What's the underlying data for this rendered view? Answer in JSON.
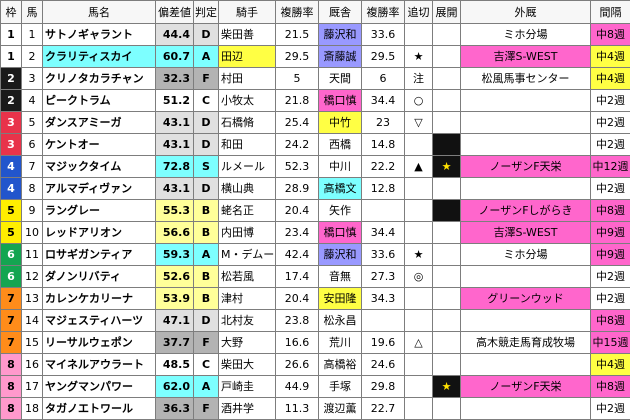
{
  "table": {
    "headers": [
      "枠",
      "馬",
      "馬名",
      "偏差値",
      "判定",
      "騎手",
      "複勝率",
      "厩舎",
      "複勝率",
      "追切",
      "展開",
      "外厩",
      "間隔"
    ],
    "rows": [
      {
        "waku": "1",
        "num": "1",
        "name": "サトノギャラント",
        "name_hl": "",
        "dev": "44.4",
        "grade": "D",
        "jockey": "柴田善",
        "jockey_hl": "",
        "jrate": "21.5",
        "stable": "藤沢和",
        "stable_hl": "blue",
        "srate": "33.6",
        "oikiri": "",
        "tenkai": "",
        "tenkai_black": false,
        "gaikyu": "ミホ分場",
        "gaikyu_hl": "",
        "interval": "中8週",
        "interval_hl": "pink"
      },
      {
        "waku": "1",
        "num": "2",
        "name": "クラリティスカイ",
        "name_hl": "cyan",
        "dev": "60.7",
        "grade": "A",
        "jockey": "田辺",
        "jockey_hl": "yellow",
        "jrate": "29.5",
        "stable": "斎藤誠",
        "stable_hl": "blue",
        "srate": "29.5",
        "oikiri": "★",
        "tenkai": "",
        "tenkai_black": false,
        "gaikyu": "吉澤S-WEST",
        "gaikyu_hl": "pink",
        "interval": "中4週",
        "interval_hl": "yellow"
      },
      {
        "waku": "2",
        "num": "3",
        "name": "クリノタカラチャン",
        "name_hl": "",
        "dev": "32.3",
        "grade": "F",
        "jockey": "村田",
        "jockey_hl": "",
        "jrate": "5",
        "stable": "天間",
        "stable_hl": "",
        "srate": "6",
        "oikiri": "注",
        "tenkai": "",
        "tenkai_black": false,
        "gaikyu": "松風馬事センター",
        "gaikyu_hl": "",
        "interval": "中4週",
        "interval_hl": "yellow"
      },
      {
        "waku": "2",
        "num": "4",
        "name": "ピークトラム",
        "name_hl": "",
        "dev": "51.2",
        "grade": "C",
        "jockey": "小牧太",
        "jockey_hl": "",
        "jrate": "21.8",
        "stable": "橋口慎",
        "stable_hl": "pink",
        "srate": "34.4",
        "oikiri": "○",
        "tenkai": "",
        "tenkai_black": false,
        "gaikyu": "",
        "gaikyu_hl": "",
        "interval": "中2週",
        "interval_hl": ""
      },
      {
        "waku": "3",
        "num": "5",
        "name": "ダンスアミーガ",
        "name_hl": "",
        "dev": "43.1",
        "grade": "D",
        "jockey": "石橋脩",
        "jockey_hl": "",
        "jrate": "25.4",
        "stable": "中竹",
        "stable_hl": "yellow",
        "srate": "23",
        "oikiri": "▽",
        "tenkai": "",
        "tenkai_black": false,
        "gaikyu": "",
        "gaikyu_hl": "",
        "interval": "中2週",
        "interval_hl": ""
      },
      {
        "waku": "3",
        "num": "6",
        "name": "ケントオー",
        "name_hl": "",
        "dev": "43.1",
        "grade": "D",
        "jockey": "和田",
        "jockey_hl": "",
        "jrate": "24.2",
        "stable": "西橋",
        "stable_hl": "",
        "srate": "14.8",
        "oikiri": "",
        "tenkai": "",
        "tenkai_black": true,
        "gaikyu": "",
        "gaikyu_hl": "",
        "interval": "中2週",
        "interval_hl": ""
      },
      {
        "waku": "4",
        "num": "7",
        "name": "マジックタイム",
        "name_hl": "",
        "dev": "72.8",
        "grade": "S",
        "jockey": "ルメール",
        "jockey_hl": "",
        "jrate": "52.3",
        "stable": "中川",
        "stable_hl": "",
        "srate": "22.2",
        "oikiri": "▲",
        "tenkai": "★",
        "tenkai_black": true,
        "gaikyu": "ノーザンF天栄",
        "gaikyu_hl": "pink",
        "interval": "中12週",
        "interval_hl": "pink"
      },
      {
        "waku": "4",
        "num": "8",
        "name": "アルマディヴァン",
        "name_hl": "",
        "dev": "43.1",
        "grade": "D",
        "jockey": "横山典",
        "jockey_hl": "",
        "jrate": "28.9",
        "stable": "高橋文",
        "stable_hl": "cyan",
        "srate": "12.8",
        "oikiri": "",
        "tenkai": "",
        "tenkai_black": false,
        "gaikyu": "",
        "gaikyu_hl": "",
        "interval": "中2週",
        "interval_hl": ""
      },
      {
        "waku": "5",
        "num": "9",
        "name": "ラングレー",
        "name_hl": "",
        "dev": "55.3",
        "grade": "B",
        "jockey": "蛯名正",
        "jockey_hl": "",
        "jrate": "20.4",
        "stable": "矢作",
        "stable_hl": "",
        "srate": "",
        "oikiri": "",
        "tenkai": "",
        "tenkai_black": true,
        "gaikyu": "ノーザンFしがらき",
        "gaikyu_hl": "pink",
        "interval": "中8週",
        "interval_hl": "pink"
      },
      {
        "waku": "5",
        "num": "10",
        "name": "レッドアリオン",
        "name_hl": "",
        "dev": "56.6",
        "grade": "B",
        "jockey": "内田博",
        "jockey_hl": "",
        "jrate": "23.4",
        "stable": "橋口慎",
        "stable_hl": "pink",
        "srate": "34.4",
        "oikiri": "",
        "tenkai": "",
        "tenkai_black": false,
        "gaikyu": "吉澤S-WEST",
        "gaikyu_hl": "pink",
        "interval": "中9週",
        "interval_hl": "pink"
      },
      {
        "waku": "6",
        "num": "11",
        "name": "ロサギガンティア",
        "name_hl": "",
        "dev": "59.3",
        "grade": "A",
        "jockey": "M・デムーロ",
        "jockey_hl": "",
        "jrate": "42.4",
        "stable": "藤沢和",
        "stable_hl": "blue",
        "srate": "33.6",
        "oikiri": "★",
        "tenkai": "",
        "tenkai_black": false,
        "gaikyu": "ミホ分場",
        "gaikyu_hl": "",
        "interval": "中9週",
        "interval_hl": "pink"
      },
      {
        "waku": "6",
        "num": "12",
        "name": "ダノンリバティ",
        "name_hl": "",
        "dev": "52.6",
        "grade": "B",
        "jockey": "松若風",
        "jockey_hl": "",
        "jrate": "17.4",
        "stable": "音無",
        "stable_hl": "",
        "srate": "27.3",
        "oikiri": "◎",
        "tenkai": "",
        "tenkai_black": false,
        "gaikyu": "",
        "gaikyu_hl": "",
        "interval": "中2週",
        "interval_hl": ""
      },
      {
        "waku": "7",
        "num": "13",
        "name": "カレンケカリーナ",
        "name_hl": "",
        "dev": "53.9",
        "grade": "B",
        "jockey": "津村",
        "jockey_hl": "",
        "jrate": "20.4",
        "stable": "安田隆",
        "stable_hl": "yellow",
        "srate": "34.3",
        "oikiri": "",
        "tenkai": "",
        "tenkai_black": false,
        "gaikyu": "グリーンウッド",
        "gaikyu_hl": "pink",
        "interval": "中2週",
        "interval_hl": ""
      },
      {
        "waku": "7",
        "num": "14",
        "name": "マジェスティハーツ",
        "name_hl": "",
        "dev": "47.1",
        "grade": "D",
        "jockey": "北村友",
        "jockey_hl": "",
        "jrate": "23.8",
        "stable": "松永昌",
        "stable_hl": "",
        "srate": "",
        "oikiri": "",
        "tenkai": "",
        "tenkai_black": false,
        "gaikyu": "",
        "gaikyu_hl": "",
        "interval": "中8週",
        "interval_hl": "pink"
      },
      {
        "waku": "7",
        "num": "15",
        "name": "リーサルウェポン",
        "name_hl": "",
        "dev": "37.7",
        "grade": "F",
        "jockey": "大野",
        "jockey_hl": "",
        "jrate": "16.6",
        "stable": "荒川",
        "stable_hl": "",
        "srate": "19.6",
        "oikiri": "△",
        "tenkai": "",
        "tenkai_black": false,
        "gaikyu": "高木競走馬育成牧場",
        "gaikyu_hl": "",
        "interval": "中15週",
        "interval_hl": "pink"
      },
      {
        "waku": "8",
        "num": "16",
        "name": "マイネルアウラート",
        "name_hl": "",
        "dev": "48.5",
        "grade": "C",
        "jockey": "柴田大",
        "jockey_hl": "",
        "jrate": "26.6",
        "stable": "高橋裕",
        "stable_hl": "",
        "srate": "24.6",
        "oikiri": "",
        "tenkai": "",
        "tenkai_black": false,
        "gaikyu": "",
        "gaikyu_hl": "",
        "interval": "中4週",
        "interval_hl": "yellow"
      },
      {
        "waku": "8",
        "num": "17",
        "name": "ヤングマンパワー",
        "name_hl": "",
        "dev": "62.0",
        "grade": "A",
        "jockey": "戸崎圭",
        "jockey_hl": "",
        "jrate": "44.9",
        "stable": "手塚",
        "stable_hl": "",
        "srate": "29.8",
        "oikiri": "",
        "tenkai": "★",
        "tenkai_black": true,
        "gaikyu": "ノーザンF天栄",
        "gaikyu_hl": "pink",
        "interval": "中8週",
        "interval_hl": "pink"
      },
      {
        "waku": "8",
        "num": "18",
        "name": "タガノエトワール",
        "name_hl": "",
        "dev": "36.3",
        "grade": "F",
        "jockey": "酒井学",
        "jockey_hl": "",
        "jrate": "11.3",
        "stable": "渡辺薫",
        "stable_hl": "",
        "srate": "22.7",
        "oikiri": "",
        "tenkai": "",
        "tenkai_black": false,
        "gaikyu": "",
        "gaikyu_hl": "",
        "interval": "中2週",
        "interval_hl": ""
      }
    ]
  },
  "colors": {
    "waku": {
      "1": [
        "#ffffff",
        "#000000"
      ],
      "2": [
        "#1a1a1a",
        "#ffffff"
      ],
      "3": [
        "#e8334a",
        "#ffffff"
      ],
      "4": [
        "#2255cc",
        "#ffffff"
      ],
      "5": [
        "#ffee00",
        "#000000"
      ],
      "6": [
        "#14a551",
        "#ffffff"
      ],
      "7": [
        "#ff8c1a",
        "#000000"
      ],
      "8": [
        "#ff99cc",
        "#000000"
      ]
    },
    "grade": {
      "S": "#7dffff",
      "A": "#7dffff",
      "B": "#ffff99",
      "C": "#ffffff",
      "D": "#e0e0e0",
      "F": "#b3b3b3"
    },
    "hl": {
      "pink": "#ff66cc",
      "yellow": "#ffff44",
      "blue": "#9999ff",
      "cyan": "#7dffff"
    },
    "pace_bg": "#111111",
    "pace_star": "#ffe100"
  }
}
